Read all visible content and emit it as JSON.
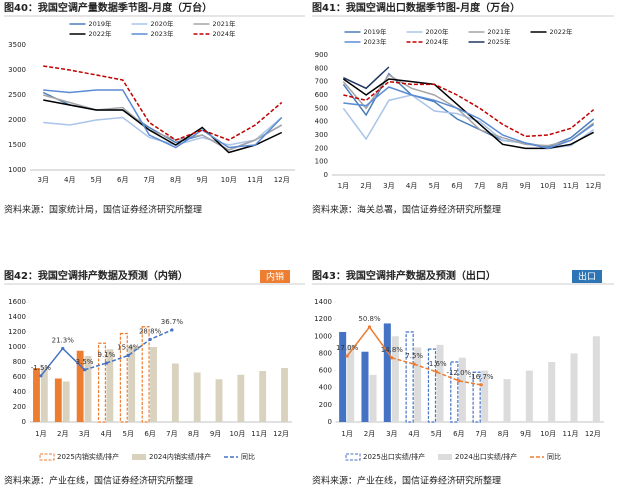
{
  "chart_data": [
    {
      "type": "line",
      "title": "图40：我国空调产量数据季节图-月度（万台）",
      "source": "资料来源：国家统计局，国信证券经济研究所整理",
      "categories": [
        "3月",
        "4月",
        "5月",
        "6月",
        "7月",
        "8月",
        "9月",
        "10月",
        "11月",
        "12月"
      ],
      "ylim": [
        1000,
        3500
      ],
      "yticks": [
        1000,
        1500,
        2000,
        2500,
        3000,
        3500
      ],
      "series": [
        {
          "name": "2019年",
          "color": "#4a7ebb",
          "values": [
            2550,
            2300,
            2200,
            2200,
            1850,
            1550,
            1700,
            1400,
            1600,
            1900
          ]
        },
        {
          "name": "2020年",
          "color": "#a9c4e8",
          "values": [
            1950,
            1900,
            2000,
            2050,
            1650,
            1500,
            1650,
            1500,
            1600,
            2050
          ]
        },
        {
          "name": "2021年",
          "color": "#a6a6a6",
          "values": [
            2500,
            2350,
            2200,
            2250,
            1800,
            1600,
            1700,
            1400,
            1600,
            1900
          ]
        },
        {
          "name": "2022年",
          "color": "#000000",
          "values": [
            2400,
            2300,
            2200,
            2200,
            1800,
            1500,
            1850,
            1350,
            1500,
            1750
          ]
        },
        {
          "name": "2023年",
          "color": "#5b8bd4",
          "values": [
            2600,
            2550,
            2600,
            2600,
            1700,
            1450,
            1800,
            1450,
            1500,
            2050
          ]
        },
        {
          "name": "2024年",
          "color": "#c00000",
          "dash": true,
          "values": [
            3080,
            3000,
            2900,
            2800,
            1950,
            1600,
            1800,
            1600,
            1900,
            2350
          ]
        }
      ]
    },
    {
      "type": "line",
      "title": "图41：我国空调出口数据季节图-月度（万台）",
      "source": "资料来源：海关总署，国信证券经济研究所整理",
      "categories": [
        "1月",
        "2月",
        "3月",
        "4月",
        "5月",
        "6月",
        "7月",
        "8月",
        "9月",
        "10月",
        "11月",
        "12月"
      ],
      "ylim": [
        0,
        900
      ],
      "yticks": [
        0,
        100,
        200,
        300,
        400,
        500,
        600,
        700,
        800,
        900
      ],
      "series": [
        {
          "name": "2019年",
          "color": "#4a7ebb",
          "values": [
            680,
            450,
            760,
            600,
            550,
            420,
            340,
            260,
            240,
            210,
            280,
            420
          ]
        },
        {
          "name": "2020年",
          "color": "#a9c4e8",
          "values": [
            500,
            270,
            560,
            600,
            480,
            460,
            400,
            260,
            240,
            200,
            220,
            340
          ]
        },
        {
          "name": "2021年",
          "color": "#a6a6a6",
          "values": [
            700,
            500,
            750,
            650,
            600,
            500,
            340,
            280,
            230,
            220,
            260,
            390
          ]
        },
        {
          "name": "2022年",
          "color": "#000000",
          "values": [
            720,
            600,
            720,
            700,
            680,
            530,
            380,
            230,
            200,
            200,
            230,
            320
          ]
        },
        {
          "name": "2023年",
          "color": "#5b8bd4",
          "values": [
            540,
            520,
            660,
            600,
            560,
            500,
            420,
            300,
            240,
            200,
            260,
            380
          ]
        },
        {
          "name": "2024年",
          "color": "#c00000",
          "dash": true,
          "values": [
            600,
            560,
            700,
            680,
            680,
            600,
            500,
            380,
            290,
            300,
            350,
            490
          ]
        },
        {
          "name": "2025年",
          "color": "#1f3864",
          "values": [
            730,
            650,
            810,
            null,
            null,
            null,
            null,
            null,
            null,
            null,
            null,
            null
          ]
        }
      ]
    },
    {
      "type": "bar_line",
      "title": "图42：我国空调排产数据及预测（内销）",
      "tag": "内销",
      "tag_color": "#ed7d31",
      "source": "资料来源：产业在线，国信证券经济研究所整理",
      "categories": [
        "1月",
        "2月",
        "3月",
        "4月",
        "5月",
        "6月",
        "7月",
        "8月",
        "9月",
        "10月",
        "11月",
        "12月"
      ],
      "ylim": [
        0,
        1600
      ],
      "yticks": [
        0,
        200,
        400,
        600,
        800,
        1000,
        1200,
        1400,
        1600
      ],
      "y2lim": [
        -40,
        60
      ],
      "series": [
        {
          "name": "2025内销实绩/排产",
          "color": "#ed7d31",
          "values": [
            720,
            580,
            950,
            1050,
            1180,
            1270,
            null,
            null,
            null,
            null,
            null,
            null
          ]
        },
        {
          "name": "2024内销实绩/排产",
          "color": "#d9d2bf",
          "values": [
            730,
            540,
            880,
            970,
            1020,
            1000,
            780,
            660,
            570,
            630,
            680,
            720
          ]
        },
        {
          "name": "同比",
          "color": "#4472c4",
          "axis": "y2",
          "values": [
            -1.5,
            21.3,
            3.5,
            9.1,
            15.4,
            28.8,
            36.7,
            null,
            null,
            null,
            null,
            null
          ],
          "value_labels": [
            "-1.5%",
            "21.3%",
            "3.5%",
            "9.1%",
            "15.4%",
            "28.8%",
            "36.7%",
            null,
            null,
            null,
            null,
            null
          ]
        }
      ]
    },
    {
      "type": "bar_line",
      "title": "图43：我国空调排产数据及预测（出口）",
      "tag": "出口",
      "tag_color": "#2e75b6",
      "source": "资料来源：产业在线，国信证券经济研究所整理",
      "categories": [
        "1月",
        "2月",
        "3月",
        "4月",
        "5月",
        "6月",
        "7月",
        "8月",
        "9月",
        "10月",
        "11月",
        "12月"
      ],
      "ylim": [
        0,
        1400
      ],
      "yticks": [
        0,
        200,
        400,
        600,
        800,
        1000,
        1200,
        1400
      ],
      "y2lim": [
        -60,
        80
      ],
      "series": [
        {
          "name": "2025出口实绩/排产",
          "color": "#4472c4",
          "values": [
            1050,
            820,
            1150,
            1050,
            850,
            700,
            580,
            null,
            null,
            null,
            null,
            null
          ]
        },
        {
          "name": "2024出口实绩/排产",
          "color": "#dcdcdc",
          "values": [
            900,
            550,
            1000,
            870,
            900,
            750,
            600,
            500,
            600,
            700,
            800,
            1000
          ]
        },
        {
          "name": "同比",
          "color": "#ed7d31",
          "axis": "y2",
          "values": [
            17.0,
            50.8,
            14.8,
            7.5,
            -1.6,
            -12.0,
            -16.7,
            null,
            null,
            null,
            null,
            null
          ],
          "value_labels": [
            "17.0%",
            "50.8%",
            "14.8%",
            "7.5%",
            "-1.6%",
            "-12.0%",
            "-16.7%",
            null,
            null,
            null,
            null,
            null
          ]
        }
      ]
    }
  ]
}
